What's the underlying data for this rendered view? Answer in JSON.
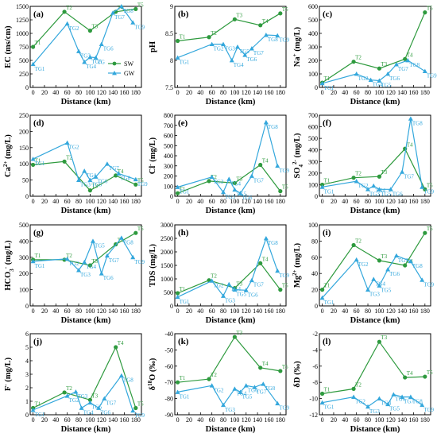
{
  "colors": {
    "SW": "#2e9a3e",
    "GW": "#33a7dc"
  },
  "chart_data": [
    {
      "id": "a",
      "panel_label": "(a)",
      "type": "line",
      "ylabel": "EC (ms/cm)",
      "xlabel": "Distance (km)",
      "xlim": [
        -5,
        190
      ],
      "ylim": [
        0,
        1500
      ],
      "yticks": [
        0,
        250,
        500,
        750,
        1000,
        1250,
        1500
      ],
      "xticks": [
        0,
        20,
        40,
        60,
        80,
        100,
        120,
        140,
        160,
        180
      ],
      "legend": {
        "position": "lower-right",
        "entries": [
          "SW",
          "GW"
        ]
      },
      "series": [
        {
          "name": "SW",
          "x": [
            0,
            55,
            100,
            145,
            180
          ],
          "y": [
            750,
            1400,
            1050,
            1400,
            1450
          ],
          "labels": [
            "T1",
            "T2",
            "T3",
            "T4",
            "T5"
          ]
        },
        {
          "name": "GW",
          "x": [
            0,
            60,
            80,
            90,
            100,
            110,
            120,
            140,
            155,
            175
          ],
          "y": [
            430,
            1180,
            670,
            470,
            560,
            550,
            800,
            1380,
            1500,
            1200
          ],
          "labels": [
            "TG1",
            "TG2",
            "TG3",
            "TG4",
            "TG5",
            "TG",
            "TG6",
            "TG7",
            "TG8",
            "TG9"
          ]
        }
      ]
    },
    {
      "id": "b",
      "panel_label": "(b)",
      "type": "line",
      "ylabel": "pH",
      "xlabel": "Distance (km)",
      "xlim": [
        -5,
        190
      ],
      "ylim": [
        7.5,
        9.0
      ],
      "yticks": [
        7.5,
        8.0,
        8.5,
        9.0
      ],
      "xticks": [
        0,
        20,
        40,
        60,
        80,
        100,
        120,
        140,
        160,
        180
      ],
      "series": [
        {
          "name": "SW",
          "x": [
            0,
            55,
            100,
            145,
            180
          ],
          "y": [
            8.36,
            8.43,
            8.76,
            8.65,
            8.87
          ],
          "labels": [
            "T1",
            "T2",
            "T3",
            "T4",
            "T5"
          ]
        },
        {
          "name": "GW",
          "x": [
            0,
            60,
            80,
            95,
            105,
            118,
            130,
            155,
            175
          ],
          "y": [
            8.05,
            8.3,
            8.3,
            8.0,
            8.25,
            8.1,
            8.22,
            8.47,
            8.46
          ],
          "labels": [
            "TG1",
            "TG2",
            "TG3",
            "TG4",
            "TG5",
            "TG6",
            "TG7",
            "TG8",
            "TG9"
          ]
        }
      ]
    },
    {
      "id": "c",
      "panel_label": "(c)",
      "type": "line",
      "ylabel": "Na+ (mg/L)",
      "xlabel": "Distance (km)",
      "xlim": [
        -5,
        190
      ],
      "ylim": [
        0,
        600
      ],
      "yticks": [
        0,
        100,
        200,
        300,
        400,
        500,
        600
      ],
      "xticks": [
        0,
        20,
        40,
        60,
        80,
        100,
        120,
        140,
        160,
        180
      ],
      "series": [
        {
          "name": "SW",
          "x": [
            0,
            55,
            100,
            145,
            180
          ],
          "y": [
            35,
            190,
            140,
            210,
            555
          ],
          "labels": [
            "T1",
            "T2",
            "T3",
            "T4",
            "T5"
          ]
        },
        {
          "name": "GW",
          "x": [
            0,
            60,
            85,
            100,
            115,
            130,
            150,
            180
          ],
          "y": [
            30,
            100,
            55,
            50,
            100,
            170,
            200,
            120
          ],
          "labels": [
            "TG1",
            "TG2",
            "TG4",
            "TG5",
            "TG6",
            "TG7",
            "TG8",
            "TG9"
          ]
        }
      ]
    },
    {
      "id": "d",
      "panel_label": "(d)",
      "type": "line",
      "ylabel": "Ca2+ (mg/L)",
      "xlabel": "Distance (km)",
      "xlim": [
        -5,
        190
      ],
      "ylim": [
        0,
        250
      ],
      "yticks": [
        0,
        50,
        100,
        150,
        200,
        250
      ],
      "xticks": [
        0,
        20,
        40,
        60,
        80,
        100,
        120,
        140,
        160,
        180
      ],
      "series": [
        {
          "name": "SW",
          "x": [
            0,
            55,
            100,
            145,
            180
          ],
          "y": [
            97,
            107,
            18,
            64,
            36
          ],
          "labels": [
            "T1",
            "T2",
            "T3",
            "T4",
            "T5"
          ]
        },
        {
          "name": "GW",
          "x": [
            0,
            60,
            80,
            90,
            100,
            110,
            130,
            150,
            180
          ],
          "y": [
            115,
            165,
            50,
            78,
            50,
            60,
            100,
            70,
            52
          ],
          "labels": [
            "TG1",
            "TG2",
            "TG3",
            "TG4",
            "TG5",
            "TG6",
            "TG7",
            "TG8",
            "TG9"
          ]
        }
      ]
    },
    {
      "id": "e",
      "panel_label": "(e)",
      "type": "line",
      "ylabel": "Cl- (mg/L)",
      "xlabel": "Distance (km)",
      "xlim": [
        -5,
        190
      ],
      "ylim": [
        0,
        800
      ],
      "yticks": [
        0,
        100,
        200,
        300,
        400,
        500,
        600,
        700,
        800
      ],
      "xticks": [
        0,
        20,
        40,
        60,
        80,
        100,
        120,
        140,
        160,
        180
      ],
      "series": [
        {
          "name": "SW",
          "x": [
            0,
            55,
            100,
            145,
            180
          ],
          "y": [
            30,
            150,
            130,
            310,
            50
          ],
          "labels": [
            "T1",
            "T2",
            "T3",
            "T4",
            "T5"
          ]
        },
        {
          "name": "GW",
          "x": [
            0,
            60,
            80,
            90,
            100,
            110,
            130,
            155,
            175
          ],
          "y": [
            90,
            190,
            40,
            170,
            65,
            30,
            200,
            730,
            300
          ],
          "labels": [
            "TG1",
            "TG2",
            "TG3",
            "TG4",
            "TG5",
            "TG6",
            "TG7",
            "TG8",
            "TG9"
          ]
        }
      ]
    },
    {
      "id": "f",
      "panel_label": "(f)",
      "type": "line",
      "ylabel": "SO42- (mg/L)",
      "xlabel": "Distance (km)",
      "xlim": [
        -5,
        190
      ],
      "ylim": [
        0,
        700
      ],
      "yticks": [
        0,
        100,
        200,
        300,
        400,
        500,
        600,
        700
      ],
      "xticks": [
        0,
        20,
        40,
        60,
        80,
        100,
        120,
        140,
        160,
        180
      ],
      "series": [
        {
          "name": "SW",
          "x": [
            0,
            55,
            100,
            145,
            180
          ],
          "y": [
            100,
            160,
            170,
            410,
            60
          ],
          "labels": [
            "T1",
            "T2",
            "T3",
            "T4",
            "T5"
          ]
        },
        {
          "name": "GW",
          "x": [
            0,
            60,
            80,
            90,
            100,
            120,
            140,
            155,
            175
          ],
          "y": [
            80,
            130,
            60,
            90,
            60,
            60,
            210,
            670,
            80
          ],
          "labels": [
            "TG1",
            "TG2",
            "TG3",
            "TG4",
            "TG5",
            "TG6",
            "TG7",
            "TG8",
            "TG9"
          ]
        }
      ]
    },
    {
      "id": "g",
      "panel_label": "(g)",
      "type": "line",
      "ylabel": "HCO3- (mg/L)",
      "xlabel": "Distance (km)",
      "xlim": [
        -5,
        190
      ],
      "ylim": [
        0,
        500
      ],
      "yticks": [
        0,
        100,
        200,
        300,
        400,
        500
      ],
      "xticks": [
        0,
        20,
        40,
        60,
        80,
        100,
        120,
        140,
        160,
        180
      ],
      "series": [
        {
          "name": "SW",
          "x": [
            0,
            55,
            100,
            145,
            180
          ],
          "y": [
            285,
            285,
            250,
            380,
            450
          ],
          "labels": [
            "T1",
            "T2",
            "T3",
            "T4",
            "T5"
          ]
        },
        {
          "name": "GW",
          "x": [
            0,
            60,
            80,
            90,
            105,
            120,
            130,
            155,
            175
          ],
          "y": [
            275,
            290,
            220,
            270,
            400,
            200,
            310,
            420,
            300
          ],
          "labels": [
            "TG1",
            "TG2",
            "TG3",
            "TG4",
            "TG5",
            "TG6",
            "TG7",
            "TG8",
            "TG9"
          ]
        }
      ]
    },
    {
      "id": "h",
      "panel_label": "(h)",
      "type": "line",
      "ylabel": "TDS (mg/L)",
      "xlabel": "Distance (km)",
      "xlim": [
        -5,
        190
      ],
      "ylim": [
        0,
        3000
      ],
      "yticks": [
        0,
        500,
        1000,
        1500,
        2000,
        2500,
        3000
      ],
      "xticks": [
        0,
        20,
        40,
        60,
        80,
        100,
        120,
        140,
        160,
        180
      ],
      "series": [
        {
          "name": "SW",
          "x": [
            0,
            55,
            100,
            145,
            180
          ],
          "y": [
            470,
            950,
            660,
            1580,
            600
          ],
          "labels": [
            "T1",
            "T2",
            "T3",
            "T4",
            "T5"
          ]
        },
        {
          "name": "GW",
          "x": [
            0,
            60,
            80,
            90,
            100,
            120,
            130,
            155,
            175
          ],
          "y": [
            330,
            930,
            370,
            800,
            600,
            580,
            950,
            2500,
            1300
          ],
          "labels": [
            "TG1",
            "TG2",
            "TG3",
            "TG4",
            "TG5",
            "TG6",
            "TG7",
            "TG8",
            "TG9"
          ]
        }
      ]
    },
    {
      "id": "i",
      "panel_label": "(i)",
      "type": "line",
      "ylabel": "Mg2+ (mg/L)",
      "xlabel": "Distance (km)",
      "xlim": [
        -5,
        190
      ],
      "ylim": [
        0,
        100
      ],
      "yticks": [
        0,
        20,
        40,
        60,
        80,
        100
      ],
      "xticks": [
        0,
        20,
        40,
        60,
        80,
        100,
        120,
        140,
        160,
        180
      ],
      "series": [
        {
          "name": "SW",
          "x": [
            0,
            55,
            100,
            145,
            180
          ],
          "y": [
            20,
            75,
            56,
            50,
            90
          ],
          "labels": [
            "T1",
            "T2",
            "T3",
            "T4",
            "T5"
          ]
        },
        {
          "name": "GW",
          "x": [
            0,
            60,
            80,
            90,
            100,
            115,
            130,
            155,
            175
          ],
          "y": [
            10,
            57,
            20,
            33,
            25,
            45,
            62,
            55,
            32
          ],
          "labels": [
            "TG1",
            "TG2",
            "TG3",
            "TG4",
            "TG5",
            "TG6",
            "TG7",
            "TG8",
            "TG9"
          ]
        }
      ]
    },
    {
      "id": "j",
      "panel_label": "(j)",
      "type": "line",
      "ylabel": "F- (mg/L)",
      "xlabel": "Distance (km)",
      "xlim": [
        -5,
        190
      ],
      "ylim": [
        0,
        6
      ],
      "yticks": [
        0,
        1,
        2,
        3,
        4,
        5,
        6
      ],
      "xticks": [
        0,
        20,
        40,
        60,
        80,
        100,
        120,
        140,
        160,
        180
      ],
      "series": [
        {
          "name": "SW",
          "x": [
            0,
            55,
            100,
            145,
            180
          ],
          "y": [
            0.5,
            1.65,
            1.1,
            5.0,
            0.5
          ],
          "labels": [
            "T1",
            "T2",
            "T3",
            "T4",
            "T5"
          ]
        },
        {
          "name": "GW",
          "x": [
            0,
            60,
            75,
            85,
            100,
            115,
            125,
            155,
            175
          ],
          "y": [
            0.35,
            1.4,
            1.7,
            0.5,
            0.9,
            0.5,
            1.2,
            2.9,
            0.3
          ],
          "labels": [
            "TG1",
            "TG2",
            "TG3",
            "TG4",
            "TG5",
            "TG6",
            "TG7",
            "TG8",
            "TG9"
          ]
        }
      ]
    },
    {
      "id": "k",
      "panel_label": "(k)",
      "type": "line",
      "ylabel": "δ18O (‰)",
      "xlabel": "Distance (km)",
      "xlim": [
        -5,
        190
      ],
      "ylim": [
        -90,
        -40
      ],
      "yticks": [
        -90,
        -80,
        -70,
        -60,
        -50,
        -40
      ],
      "xticks": [
        0,
        20,
        40,
        60,
        80,
        100,
        120,
        140,
        160,
        180
      ],
      "series": [
        {
          "name": "SW",
          "x": [
            0,
            55,
            100,
            145,
            180
          ],
          "y": [
            -70,
            -68,
            -42,
            -61,
            -63
          ],
          "labels": [
            "T1",
            "T2",
            "T3",
            "T4",
            "T5"
          ]
        },
        {
          "name": "GW",
          "x": [
            0,
            60,
            80,
            100,
            110,
            120,
            135,
            150,
            175
          ],
          "y": [
            -76,
            -72,
            -84,
            -74,
            -76,
            -72,
            -73,
            -71,
            -83
          ],
          "labels": [
            "TG1",
            "TG2",
            "TG3",
            "TG4",
            "TG5",
            "TG6",
            "TG7",
            "TG8",
            "TG9"
          ]
        }
      ]
    },
    {
      "id": "l",
      "panel_label": "(l)",
      "type": "line",
      "ylabel": "δD (‰)",
      "xlabel": "Distance (km)",
      "xlim": [
        -5,
        190
      ],
      "ylim": [
        -12,
        -2
      ],
      "yticks": [
        -12,
        -10,
        -8,
        -6,
        -4,
        -2
      ],
      "xticks": [
        0,
        20,
        40,
        60,
        80,
        100,
        120,
        140,
        160,
        180
      ],
      "series": [
        {
          "name": "SW",
          "x": [
            0,
            55,
            100,
            145,
            180
          ],
          "y": [
            -9.4,
            -8.8,
            -3.0,
            -7.4,
            -7.3
          ],
          "labels": [
            "T1",
            "T2",
            "T3",
            "T4",
            "T5"
          ]
        },
        {
          "name": "GW",
          "x": [
            0,
            55,
            80,
            100,
            115,
            125,
            140,
            155,
            175
          ],
          "y": [
            -10.5,
            -9.8,
            -11.0,
            -10.0,
            -10.7,
            -9.5,
            -9.8,
            -9.8,
            -10.8
          ],
          "labels": [
            "TG1",
            "TG2",
            "TG3",
            "TG4",
            "TG5",
            "TG6",
            "TG7",
            "TG8",
            "TG9"
          ]
        }
      ]
    }
  ]
}
